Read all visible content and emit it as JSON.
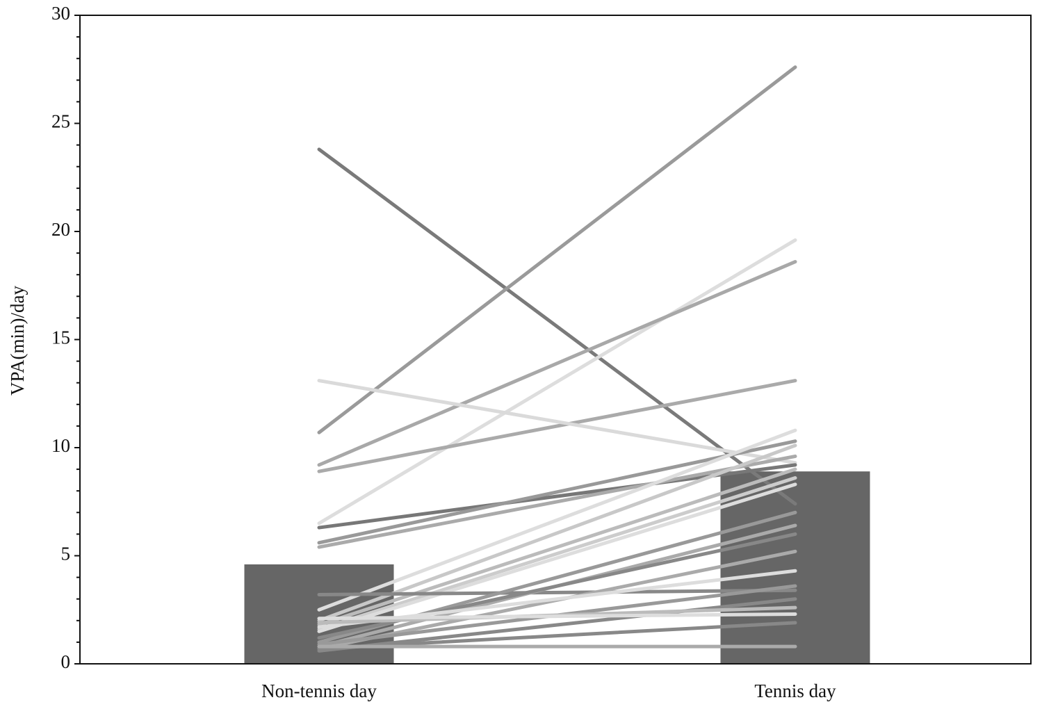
{
  "chart_data": {
    "type": "bar",
    "y_label": "VPA(min)/day",
    "categories": [
      "Non-tennis day",
      "Tennis day"
    ],
    "values": [
      4.6,
      8.9
    ],
    "color": "#666666",
    "ylim": [
      0,
      30
    ],
    "yticks": [
      0,
      5,
      10,
      15,
      20,
      25,
      30
    ],
    "yminorticks": [
      1,
      2,
      3,
      4,
      6,
      7,
      8,
      9,
      11,
      12,
      13,
      14,
      16,
      17,
      18,
      19,
      21,
      22,
      23,
      24,
      26,
      27,
      28,
      29
    ],
    "series": [
      {
        "color": "#7a7a7a",
        "values": [
          23.8,
          7.4
        ]
      },
      {
        "color": "#9a9a9a",
        "values": [
          10.7,
          27.6
        ]
      },
      {
        "color": "#dddddd",
        "values": [
          6.5,
          19.6
        ]
      },
      {
        "color": "#a8a8a8",
        "values": [
          9.2,
          18.6
        ]
      },
      {
        "color": "#aaaaaa",
        "values": [
          8.9,
          13.1
        ]
      },
      {
        "color": "#dadada",
        "values": [
          13.1,
          9.3
        ]
      },
      {
        "color": "#777777",
        "values": [
          6.3,
          9.2
        ]
      },
      {
        "color": "#999999",
        "values": [
          5.6,
          10.3
        ]
      },
      {
        "color": "#aaaaaa",
        "values": [
          5.4,
          9.6
        ]
      },
      {
        "color": "#dddddd",
        "values": [
          2.5,
          10.8
        ]
      },
      {
        "color": "#c8c8c8",
        "values": [
          2.0,
          10.1
        ]
      },
      {
        "color": "#bbbbbb",
        "values": [
          1.8,
          9.0
        ]
      },
      {
        "color": "#cccccc",
        "values": [
          1.6,
          8.6
        ]
      },
      {
        "color": "#dddddd",
        "values": [
          1.5,
          8.3
        ]
      },
      {
        "color": "#888888",
        "values": [
          3.2,
          3.4
        ]
      },
      {
        "color": "#999999",
        "values": [
          1.0,
          7.0
        ]
      },
      {
        "color": "#aaaaaa",
        "values": [
          0.8,
          6.4
        ]
      },
      {
        "color": "#888888",
        "values": [
          1.2,
          6.0
        ]
      },
      {
        "color": "#aaaaaa",
        "values": [
          0.7,
          5.2
        ]
      },
      {
        "color": "#dddddd",
        "values": [
          1.7,
          4.3
        ]
      },
      {
        "color": "#999999",
        "values": [
          0.9,
          3.6
        ]
      },
      {
        "color": "#888888",
        "values": [
          0.6,
          3.0
        ]
      },
      {
        "color": "#bbbbbb",
        "values": [
          1.9,
          2.6
        ]
      },
      {
        "color": "#dddddd",
        "values": [
          2.1,
          2.3
        ]
      },
      {
        "color": "#888888",
        "values": [
          0.7,
          1.9
        ]
      },
      {
        "color": "#aaaaaa",
        "values": [
          0.8,
          0.8
        ]
      }
    ]
  }
}
